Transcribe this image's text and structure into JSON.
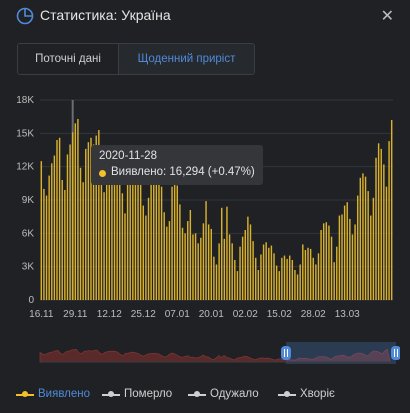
{
  "header": {
    "title": "Статистика: Україна"
  },
  "tabs": [
    {
      "label": "Поточні дані"
    },
    {
      "label": "Щоденний приріст"
    }
  ],
  "tooltip": {
    "date": "2020-11-28",
    "text": "Виявлено: 16,294 (+0.47%)"
  },
  "legend": [
    {
      "label": "Виявлено",
      "color": "#f3c02b",
      "active": true
    },
    {
      "label": "Померло",
      "color": "#cfcfcf",
      "active": false
    },
    {
      "label": "Одужало",
      "color": "#cfcfcf",
      "active": false
    },
    {
      "label": "Хворіє",
      "color": "#cfcfcf",
      "active": false
    }
  ],
  "colors": {
    "bar": "#d9b12c",
    "accent": "#4f8bd9",
    "grid": "#33363a"
  },
  "chart_data": {
    "type": "bar",
    "ylim": [
      0,
      18000
    ],
    "yticks": [
      "0",
      "3K",
      "6K",
      "9K",
      "12K",
      "15K",
      "18K"
    ],
    "xticks": [
      "16.11",
      "29.11",
      "12.12",
      "25.12",
      "07.01",
      "20.01",
      "02.02",
      "15.02",
      "28.02",
      "13.03"
    ],
    "x_start": "2020-11-16",
    "x_end": "2021-03-25",
    "highlight": "2020-11-28",
    "values": [
      12500,
      10000,
      9400,
      11200,
      12300,
      13000,
      14400,
      14600,
      10800,
      9900,
      13100,
      14000,
      15100,
      15900,
      16294,
      11900,
      10600,
      13600,
      14200,
      14600,
      14000,
      14800,
      15300,
      11600,
      9700,
      12200,
      13200,
      13800,
      13900,
      13800,
      12500,
      9600,
      7800,
      11200,
      11200,
      12400,
      12600,
      11700,
      10800,
      8500,
      7600,
      9200,
      10500,
      10900,
      11000,
      10700,
      10200,
      7900,
      6600,
      7100,
      10200,
      11400,
      10300,
      8600,
      6500,
      6000,
      7100,
      8100,
      5900,
      6000,
      5100,
      5600,
      6900,
      8900,
      6800,
      6400,
      3900,
      3200,
      5100,
      8300,
      5500,
      8400,
      5900,
      5100,
      3600,
      2600,
      4800,
      5700,
      6300,
      7500,
      6800,
      5300,
      3800,
      2700,
      4100,
      5000,
      5200,
      4700,
      4900,
      4200,
      3100,
      2600,
      3800,
      4000,
      3700,
      4000,
      3600,
      2700,
      2300,
      3200,
      5000,
      4500,
      4700,
      4600,
      3800,
      3200,
      4200,
      6300,
      6900,
      7000,
      6700,
      5700,
      3400,
      4800,
      7600,
      7700,
      8500,
      8800,
      7300,
      5900,
      6800,
      9400,
      11000,
      11400,
      11100,
      9800,
      7600,
      9200,
      12800,
      14100,
      13600,
      12200,
      10200,
      14300,
      16200
    ]
  }
}
